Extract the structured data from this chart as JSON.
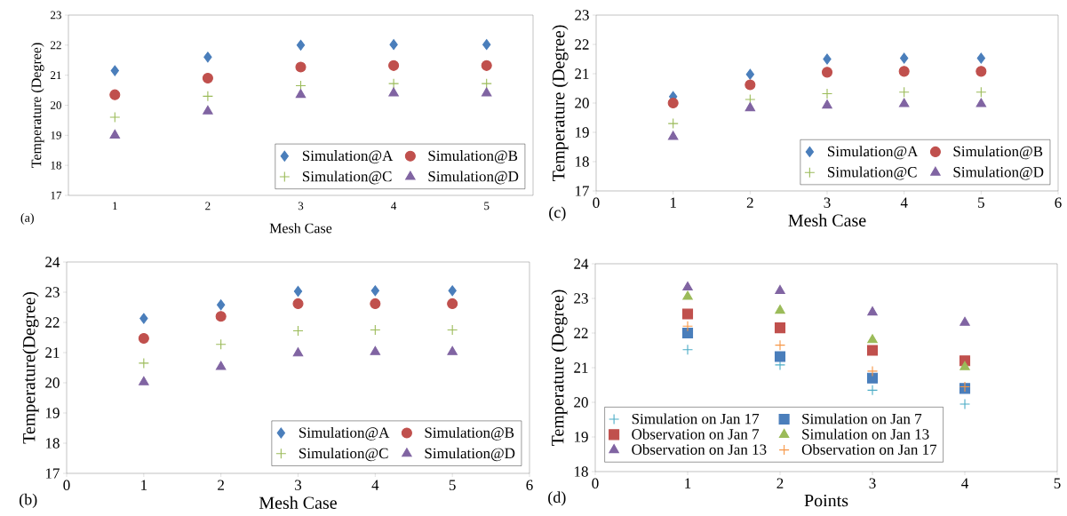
{
  "chart_data": [
    {
      "type": "scatter",
      "xlabel": "Mesh Case",
      "ylabel": "Temperature (Degree)",
      "annotations": [
        "(a)"
      ],
      "categories": [
        "1",
        "2",
        "3",
        "4",
        "5"
      ],
      "ylim": [
        17,
        23
      ],
      "yticks": [
        17,
        18,
        19,
        20,
        21,
        22,
        23
      ],
      "grid": false,
      "legend": "bottom right",
      "series": [
        {
          "name": "Simulation@A",
          "color": "#4a7ebb",
          "marker": "diamond",
          "values": [
            21.15,
            21.6,
            22.0,
            22.02,
            22.02
          ]
        },
        {
          "name": "Simulation@B",
          "color": "#c0504d",
          "marker": "circle",
          "values": [
            20.35,
            20.9,
            21.27,
            21.32,
            21.32
          ]
        },
        {
          "name": "Simulation@C",
          "color": "#9bbb59",
          "marker": "cross",
          "values": [
            19.6,
            20.3,
            20.65,
            20.72,
            20.72
          ]
        },
        {
          "name": "Simulation@D",
          "color": "#8064a2",
          "marker": "triangle",
          "values": [
            19.0,
            19.8,
            20.35,
            20.4,
            20.4
          ]
        }
      ]
    },
    {
      "type": "scatter",
      "xlabel": "Mesh Case",
      "ylabel": "Temperature (Degree)",
      "annotations": [
        "(c)"
      ],
      "x": [
        1,
        2,
        3,
        4,
        5
      ],
      "xlim": [
        0,
        6
      ],
      "xticks": [
        0,
        1,
        2,
        3,
        4,
        5,
        6
      ],
      "ylim": [
        17,
        23
      ],
      "yticks": [
        17,
        18,
        19,
        20,
        21,
        22,
        23
      ],
      "grid": false,
      "legend": "bottom right",
      "series": [
        {
          "name": "Simulation@A",
          "color": "#4a7ebb",
          "marker": "diamond",
          "values": [
            20.22,
            20.98,
            21.5,
            21.53,
            21.53
          ]
        },
        {
          "name": "Simulation@B",
          "color": "#c0504d",
          "marker": "circle",
          "values": [
            20.0,
            20.62,
            21.05,
            21.08,
            21.08
          ]
        },
        {
          "name": "Simulation@C",
          "color": "#9bbb59",
          "marker": "cross",
          "values": [
            19.3,
            20.12,
            20.32,
            20.37,
            20.37
          ]
        },
        {
          "name": "Simulation@D",
          "color": "#8064a2",
          "marker": "triangle",
          "values": [
            18.85,
            19.83,
            19.92,
            19.97,
            19.97
          ]
        }
      ]
    },
    {
      "type": "scatter",
      "xlabel": "Mesh Case",
      "ylabel": "Temperature(Degree)",
      "annotations": [
        "(b)"
      ],
      "x": [
        1,
        2,
        3,
        4,
        5
      ],
      "xlim": [
        0,
        6
      ],
      "xticks": [
        0,
        1,
        2,
        3,
        4,
        5,
        6
      ],
      "ylim": [
        17,
        24
      ],
      "yticks": [
        17,
        18,
        19,
        20,
        21,
        22,
        23,
        24
      ],
      "grid": false,
      "legend": "bottom right",
      "series": [
        {
          "name": "Simulation@A",
          "color": "#4a7ebb",
          "marker": "diamond",
          "values": [
            22.13,
            22.58,
            23.03,
            23.05,
            23.05
          ]
        },
        {
          "name": "Simulation@B",
          "color": "#c0504d",
          "marker": "circle",
          "values": [
            21.47,
            22.2,
            22.62,
            22.62,
            22.62
          ]
        },
        {
          "name": "Simulation@C",
          "color": "#9bbb59",
          "marker": "cross",
          "values": [
            20.65,
            21.27,
            21.72,
            21.75,
            21.75
          ]
        },
        {
          "name": "Simulation@D",
          "color": "#8064a2",
          "marker": "triangle",
          "values": [
            20.02,
            20.53,
            20.98,
            21.02,
            21.02
          ]
        }
      ]
    },
    {
      "type": "scatter",
      "xlabel": "Points",
      "ylabel": "Temperature (Degree)",
      "annotations": [
        "(d)"
      ],
      "x": [
        1,
        2,
        3,
        4
      ],
      "xlim": [
        0,
        5
      ],
      "xticks": [
        0,
        1,
        2,
        3,
        4,
        5
      ],
      "ylim": [
        18,
        24
      ],
      "yticks": [
        18,
        19,
        20,
        21,
        22,
        23,
        24
      ],
      "grid": false,
      "legend": "bottom left",
      "series": [
        {
          "name": "Simulation on Jan 17",
          "color": "#4bacc6",
          "marker": "cross",
          "values": [
            21.52,
            21.08,
            20.35,
            19.95
          ]
        },
        {
          "name": "Simulation on Jan 7",
          "color": "#4a7ebb",
          "marker": "square",
          "values": [
            22.0,
            21.32,
            20.7,
            20.4
          ]
        },
        {
          "name": "Observation on Jan 7",
          "color": "#c0504d",
          "marker": "square",
          "values": [
            22.55,
            22.15,
            21.5,
            21.2
          ]
        },
        {
          "name": "Simulation on Jan 13",
          "color": "#9bbb59",
          "marker": "triangle",
          "values": [
            23.05,
            22.65,
            21.8,
            21.02
          ]
        },
        {
          "name": "Observation on Jan 13",
          "color": "#8064a2",
          "marker": "triangle",
          "values": [
            23.32,
            23.22,
            22.6,
            22.3
          ]
        },
        {
          "name": "Observation on Jan 17",
          "color": "#f79646",
          "marker": "cross",
          "values": [
            22.2,
            21.65,
            20.9,
            20.45
          ]
        }
      ]
    }
  ]
}
